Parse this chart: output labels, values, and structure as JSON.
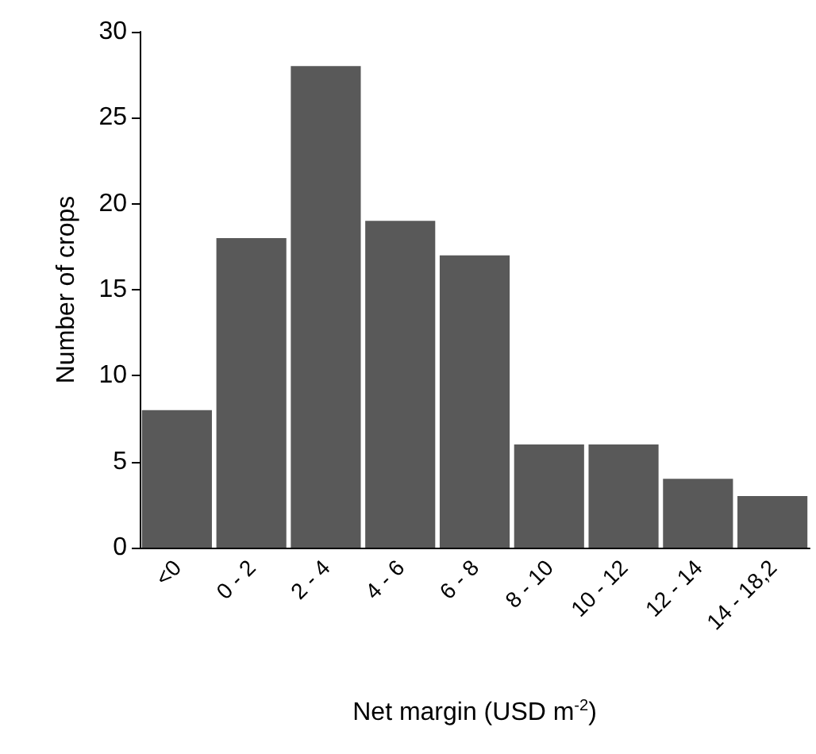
{
  "chart_data": {
    "type": "bar",
    "xlabel": "Net margin (USD m$^{-2}$)",
    "ylabel": "Number of crops",
    "categories": [
      "<0",
      "0 - 2",
      "2 - 4",
      "4 - 6",
      "6 - 8",
      "8 - 10",
      "10 - 12",
      "12 - 14",
      "14 - 18,2"
    ],
    "values": [
      8,
      18,
      28,
      19,
      17,
      6,
      6,
      4,
      3
    ],
    "color": "#595959",
    "ylim": [
      0,
      30
    ],
    "yticks": [
      0,
      5,
      10,
      15,
      20,
      25,
      30
    ],
    "grid": false
  }
}
